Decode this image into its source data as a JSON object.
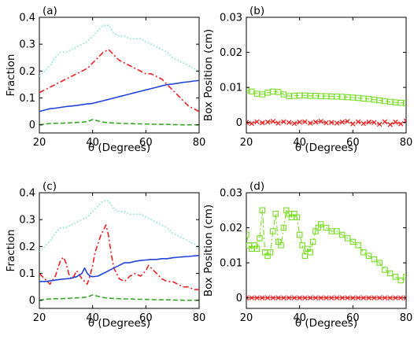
{
  "chart_data": [
    {
      "panel": "(a)",
      "type": "line",
      "xlabel": "θ (Degrees)",
      "ylabel": "Fraction",
      "xlim": [
        20,
        80
      ],
      "ylim": [
        -0.03,
        0.4
      ],
      "xticks": [
        20,
        40,
        60,
        80
      ],
      "yticks": [
        0,
        0.1,
        0.2,
        0.3,
        0.4
      ],
      "ytick_labels": [
        "0",
        "0.1",
        "0.2",
        "0.3",
        "0.4"
      ],
      "series": [
        {
          "color": "#7fe6cc",
          "style": "dotted",
          "marker": "none",
          "x": [
            20,
            22,
            24,
            26,
            28,
            30,
            32,
            34,
            36,
            38,
            40,
            42,
            44,
            46,
            48,
            50,
            52,
            54,
            56,
            58,
            60,
            62,
            64,
            66,
            68,
            70,
            72,
            74,
            76,
            78,
            80
          ],
          "y": [
            0.18,
            0.2,
            0.22,
            0.25,
            0.27,
            0.27,
            0.28,
            0.29,
            0.3,
            0.31,
            0.33,
            0.35,
            0.37,
            0.37,
            0.34,
            0.33,
            0.33,
            0.32,
            0.32,
            0.32,
            0.31,
            0.3,
            0.29,
            0.28,
            0.27,
            0.25,
            0.24,
            0.23,
            0.22,
            0.21,
            0.2
          ]
        },
        {
          "color": "#ee2222",
          "style": "dashdot",
          "marker": "none",
          "x": [
            20,
            22,
            24,
            26,
            28,
            30,
            32,
            34,
            36,
            38,
            40,
            42,
            44,
            46,
            48,
            50,
            52,
            54,
            56,
            58,
            60,
            62,
            64,
            66,
            68,
            70,
            72,
            74,
            76,
            78,
            80
          ],
          "y": [
            0.12,
            0.13,
            0.14,
            0.15,
            0.16,
            0.17,
            0.18,
            0.19,
            0.2,
            0.21,
            0.23,
            0.25,
            0.27,
            0.28,
            0.26,
            0.24,
            0.23,
            0.22,
            0.21,
            0.2,
            0.19,
            0.19,
            0.18,
            0.17,
            0.15,
            0.13,
            0.11,
            0.09,
            0.07,
            0.06,
            0.05
          ]
        },
        {
          "color": "#2244dd",
          "style": "solid",
          "marker": "none",
          "x": [
            20,
            22,
            24,
            26,
            28,
            30,
            32,
            34,
            36,
            38,
            40,
            42,
            44,
            46,
            48,
            50,
            52,
            54,
            56,
            58,
            60,
            62,
            64,
            66,
            68,
            70,
            72,
            74,
            76,
            78,
            80
          ],
          "y": [
            0.05,
            0.055,
            0.06,
            0.062,
            0.065,
            0.068,
            0.07,
            0.072,
            0.075,
            0.078,
            0.08,
            0.085,
            0.09,
            0.095,
            0.1,
            0.105,
            0.11,
            0.115,
            0.12,
            0.125,
            0.13,
            0.135,
            0.14,
            0.145,
            0.15,
            0.152,
            0.155,
            0.158,
            0.16,
            0.163,
            0.165
          ]
        },
        {
          "color": "#33aa22",
          "style": "dashed",
          "marker": "none",
          "x": [
            20,
            22,
            24,
            26,
            28,
            30,
            32,
            34,
            36,
            38,
            40,
            42,
            44,
            46,
            48,
            50,
            52,
            54,
            56,
            58,
            60,
            62,
            64,
            66,
            68,
            70,
            72,
            74,
            76,
            78,
            80
          ],
          "y": [
            0.0,
            0.003,
            0.005,
            0.006,
            0.006,
            0.007,
            0.008,
            0.009,
            0.01,
            0.012,
            0.02,
            0.015,
            0.01,
            0.008,
            0.007,
            0.006,
            0.005,
            0.005,
            0.004,
            0.004,
            0.003,
            0.003,
            0.002,
            0.002,
            0.002,
            0.001,
            0.001,
            0.0,
            0.0,
            0.0,
            0.0
          ]
        }
      ]
    },
    {
      "panel": "(b)",
      "type": "scatter",
      "xlabel": "θ (Degrees)",
      "ylabel": "Box Position (cm)",
      "xlim": [
        20,
        80
      ],
      "ylim": [
        -0.003,
        0.03
      ],
      "xticks": [
        20,
        40,
        60,
        80
      ],
      "yticks": [
        0,
        0.01,
        0.02,
        0.03
      ],
      "ytick_labels": [
        "0",
        "0.01",
        "0.02",
        "0.03"
      ],
      "series": [
        {
          "color": "#77dd22",
          "style": "dashed",
          "marker": "square",
          "x": [
            20,
            22,
            24,
            26,
            28,
            30,
            32,
            34,
            36,
            38,
            40,
            42,
            44,
            46,
            48,
            50,
            52,
            54,
            56,
            58,
            60,
            62,
            64,
            66,
            68,
            70,
            72,
            74,
            76,
            78,
            80
          ],
          "y": [
            0.0092,
            0.0088,
            0.0082,
            0.008,
            0.0085,
            0.0088,
            0.0087,
            0.008,
            0.0075,
            0.0076,
            0.0077,
            0.0077,
            0.0076,
            0.0076,
            0.0075,
            0.0075,
            0.0074,
            0.0074,
            0.0073,
            0.0072,
            0.0071,
            0.007,
            0.0068,
            0.0067,
            0.0065,
            0.0063,
            0.0061,
            0.0059,
            0.0057,
            0.0056,
            0.0055
          ]
        },
        {
          "color": "#ee2222",
          "style": "dashed",
          "marker": "x",
          "x": [
            20,
            22,
            24,
            26,
            28,
            30,
            32,
            34,
            36,
            38,
            40,
            42,
            44,
            46,
            48,
            50,
            52,
            54,
            56,
            58,
            60,
            62,
            64,
            66,
            68,
            70,
            72,
            74,
            76,
            78,
            80
          ],
          "y": [
            0.0,
            -0.0003,
            0.0002,
            -0.0001,
            0.0001,
            0.0003,
            -0.0002,
            0.0002,
            0.0,
            -0.0003,
            0.0001,
            0.0002,
            -0.0002,
            0.0001,
            0.0003,
            -0.0001,
            0.0,
            -0.0002,
            0.0001,
            0.0003,
            -0.0004,
            0.0002,
            -0.0003,
            0.0001,
            0.0,
            -0.0005,
            0.0002,
            -0.0006,
            0.0001,
            -0.0004,
            0.0004
          ]
        }
      ]
    },
    {
      "panel": "(c)",
      "type": "line",
      "xlabel": "θ (Degrees)",
      "ylabel": "Fraction",
      "xlim": [
        20,
        80
      ],
      "ylim": [
        -0.03,
        0.4
      ],
      "xticks": [
        20,
        40,
        60,
        80
      ],
      "yticks": [
        0,
        0.1,
        0.2,
        0.3,
        0.4
      ],
      "ytick_labels": [
        "0",
        "0.1",
        "0.2",
        "0.3",
        "0.4"
      ],
      "series": [
        {
          "color": "#7fe6cc",
          "style": "dotted",
          "marker": "none",
          "x": [
            20,
            22,
            24,
            26,
            28,
            30,
            32,
            34,
            36,
            38,
            40,
            42,
            44,
            46,
            48,
            50,
            52,
            54,
            56,
            58,
            60,
            62,
            64,
            66,
            68,
            70,
            72,
            74,
            76,
            78,
            80
          ],
          "y": [
            0.18,
            0.2,
            0.22,
            0.25,
            0.27,
            0.27,
            0.28,
            0.29,
            0.3,
            0.31,
            0.33,
            0.35,
            0.37,
            0.37,
            0.34,
            0.33,
            0.33,
            0.32,
            0.32,
            0.32,
            0.31,
            0.3,
            0.29,
            0.28,
            0.27,
            0.25,
            0.24,
            0.23,
            0.22,
            0.21,
            0.2
          ]
        },
        {
          "color": "#ee2222",
          "style": "dashdot",
          "marker": "none",
          "x": [
            20,
            22,
            24,
            26,
            27,
            28,
            29,
            30,
            31,
            32,
            33,
            34,
            36,
            38,
            39,
            40,
            41,
            42,
            43,
            44,
            45,
            46,
            47,
            48,
            49,
            50,
            52,
            54,
            56,
            58,
            60,
            61,
            62,
            63,
            64,
            65,
            66,
            68,
            70,
            72,
            74,
            76,
            78,
            80
          ],
          "y": [
            0.1,
            0.08,
            0.06,
            0.09,
            0.12,
            0.15,
            0.16,
            0.14,
            0.1,
            0.08,
            0.09,
            0.11,
            0.08,
            0.06,
            0.09,
            0.13,
            0.18,
            0.21,
            0.24,
            0.26,
            0.28,
            0.24,
            0.17,
            0.12,
            0.1,
            0.08,
            0.07,
            0.09,
            0.1,
            0.09,
            0.11,
            0.13,
            0.12,
            0.11,
            0.1,
            0.09,
            0.08,
            0.07,
            0.07,
            0.06,
            0.05,
            0.05,
            0.04,
            0.04
          ]
        },
        {
          "color": "#2244dd",
          "style": "solid",
          "marker": "none",
          "x": [
            20,
            22,
            24,
            26,
            28,
            30,
            32,
            34,
            36,
            37,
            38,
            39,
            40,
            42,
            44,
            46,
            48,
            50,
            52,
            54,
            56,
            58,
            60,
            62,
            64,
            66,
            68,
            70,
            72,
            74,
            76,
            78,
            80
          ],
          "y": [
            0.07,
            0.07,
            0.072,
            0.075,
            0.078,
            0.08,
            0.082,
            0.088,
            0.1,
            0.12,
            0.1,
            0.09,
            0.088,
            0.09,
            0.1,
            0.11,
            0.12,
            0.13,
            0.14,
            0.14,
            0.145,
            0.148,
            0.15,
            0.152,
            0.152,
            0.155,
            0.155,
            0.158,
            0.16,
            0.162,
            0.163,
            0.165,
            0.167
          ]
        },
        {
          "color": "#33aa22",
          "style": "dashed",
          "marker": "none",
          "x": [
            20,
            22,
            24,
            26,
            28,
            30,
            32,
            34,
            36,
            38,
            40,
            42,
            44,
            46,
            48,
            50,
            52,
            54,
            56,
            58,
            60,
            62,
            64,
            66,
            68,
            70,
            72,
            74,
            76,
            78,
            80
          ],
          "y": [
            0.0,
            0.003,
            0.005,
            0.006,
            0.006,
            0.007,
            0.008,
            0.009,
            0.01,
            0.012,
            0.02,
            0.015,
            0.01,
            0.008,
            0.007,
            0.006,
            0.005,
            0.005,
            0.004,
            0.004,
            0.003,
            0.003,
            0.002,
            0.002,
            0.002,
            0.001,
            0.001,
            0.0,
            0.0,
            0.0,
            0.0
          ]
        }
      ]
    },
    {
      "panel": "(d)",
      "type": "scatter",
      "xlabel": "θ (Degrees)",
      "ylabel": "Box Position (cm)",
      "xlim": [
        20,
        80
      ],
      "ylim": [
        -0.003,
        0.03
      ],
      "xticks": [
        20,
        40,
        60,
        80
      ],
      "yticks": [
        0,
        0.01,
        0.02,
        0.03
      ],
      "ytick_labels": [
        "0",
        "0.01",
        "0.02",
        "0.03"
      ],
      "series": [
        {
          "color": "#77dd22",
          "style": "dashdot",
          "marker": "square",
          "x": [
            20,
            21,
            22,
            23,
            24,
            25,
            26,
            27,
            28,
            29,
            30,
            31,
            32,
            33,
            34,
            35,
            36,
            37,
            38,
            39,
            40,
            41,
            42,
            43,
            44,
            45,
            46,
            47,
            48,
            50,
            52,
            54,
            56,
            58,
            60,
            62,
            64,
            66,
            68,
            70,
            72,
            74,
            76,
            78,
            80
          ],
          "y": [
            0.018,
            0.015,
            0.014,
            0.015,
            0.014,
            0.017,
            0.025,
            0.013,
            0.012,
            0.013,
            0.019,
            0.024,
            0.016,
            0.015,
            0.02,
            0.025,
            0.024,
            0.023,
            0.024,
            0.023,
            0.018,
            0.015,
            0.012,
            0.014,
            0.013,
            0.016,
            0.019,
            0.02,
            0.021,
            0.02,
            0.019,
            0.019,
            0.018,
            0.017,
            0.016,
            0.015,
            0.013,
            0.012,
            0.011,
            0.01,
            0.008,
            0.007,
            0.006,
            0.005,
            0.006
          ]
        },
        {
          "color": "#ee2222",
          "style": "solid",
          "marker": "x",
          "x": [
            20,
            22,
            24,
            26,
            28,
            30,
            32,
            34,
            36,
            38,
            40,
            42,
            44,
            46,
            48,
            50,
            52,
            54,
            56,
            58,
            60,
            62,
            64,
            66,
            68,
            70,
            72,
            74,
            76,
            78,
            80
          ],
          "y": [
            0,
            0,
            0,
            0,
            0,
            0,
            0,
            0,
            0,
            0,
            0,
            0,
            0,
            0,
            0,
            0,
            0,
            0,
            0,
            0,
            0,
            0,
            0,
            0,
            0,
            0,
            0,
            0,
            0,
            0,
            0
          ]
        }
      ]
    }
  ]
}
